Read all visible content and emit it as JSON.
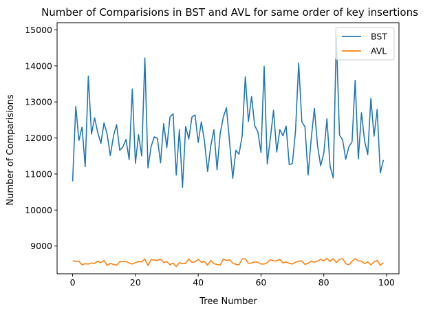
{
  "chart_data": {
    "type": "line",
    "title": "Number of Comparisions in BST and AVL for same order of key insertions",
    "xlabel": "Tree Number",
    "ylabel": "Number of Comparisions",
    "xlim": [
      -4.95,
      103.95
    ],
    "ylim": [
      8230,
      15200
    ],
    "xticks": [
      0,
      20,
      40,
      60,
      80,
      100
    ],
    "yticks": [
      9000,
      10000,
      11000,
      12000,
      13000,
      14000,
      15000
    ],
    "grid": false,
    "legend_position": "upper right",
    "x": [
      0,
      1,
      2,
      3,
      4,
      5,
      6,
      7,
      8,
      9,
      10,
      11,
      12,
      13,
      14,
      15,
      16,
      17,
      18,
      19,
      20,
      21,
      22,
      23,
      24,
      25,
      26,
      27,
      28,
      29,
      30,
      31,
      32,
      33,
      34,
      35,
      36,
      37,
      38,
      39,
      40,
      41,
      42,
      43,
      44,
      45,
      46,
      47,
      48,
      49,
      50,
      51,
      52,
      53,
      54,
      55,
      56,
      57,
      58,
      59,
      60,
      61,
      62,
      63,
      64,
      65,
      66,
      67,
      68,
      69,
      70,
      71,
      72,
      73,
      74,
      75,
      76,
      77,
      78,
      79,
      80,
      81,
      82,
      83,
      84,
      85,
      86,
      87,
      88,
      89,
      90,
      91,
      92,
      93,
      94,
      95,
      96,
      97,
      98,
      99
    ],
    "series": [
      {
        "name": "BST",
        "color": "#1f77b4",
        "values": [
          10800,
          12880,
          11930,
          12300,
          11200,
          13720,
          12110,
          12560,
          12150,
          11850,
          12420,
          12100,
          11510,
          12050,
          12370,
          11660,
          11750,
          11960,
          11400,
          13360,
          11300,
          12090,
          11500,
          14220,
          11170,
          11760,
          12030,
          11990,
          11310,
          12400,
          11730,
          12580,
          12670,
          10970,
          12230,
          10630,
          12320,
          11970,
          12580,
          12640,
          11880,
          12450,
          11900,
          11070,
          11780,
          12230,
          11120,
          12120,
          12580,
          12840,
          11880,
          10880,
          11660,
          11550,
          12060,
          13700,
          12460,
          13150,
          12340,
          12170,
          11600,
          13990,
          11280,
          12010,
          12770,
          11610,
          12230,
          12060,
          12330,
          11260,
          11290,
          12200,
          14080,
          12450,
          12310,
          10970,
          11980,
          12820,
          11800,
          11230,
          11570,
          12530,
          11220,
          10890,
          14800,
          12080,
          11950,
          11410,
          11760,
          11890,
          13600,
          11420,
          12700,
          11920,
          11540,
          13100,
          12050,
          12790,
          11030,
          11390
        ]
      },
      {
        "name": "AVL",
        "color": "#ff7f0e",
        "values": [
          8590,
          8580,
          8580,
          8480,
          8510,
          8500,
          8530,
          8520,
          8580,
          8540,
          8600,
          8460,
          8520,
          8490,
          8470,
          8560,
          8570,
          8570,
          8530,
          8500,
          8540,
          8570,
          8560,
          8640,
          8460,
          8620,
          8610,
          8600,
          8640,
          8540,
          8570,
          8480,
          8530,
          8430,
          8540,
          8510,
          8520,
          8640,
          8550,
          8560,
          8630,
          8550,
          8570,
          8470,
          8600,
          8510,
          8490,
          8470,
          8640,
          8600,
          8620,
          8530,
          8490,
          8480,
          8640,
          8650,
          8520,
          8530,
          8560,
          8550,
          8500,
          8500,
          8540,
          8620,
          8590,
          8590,
          8630,
          8530,
          8560,
          8520,
          8500,
          8550,
          8580,
          8590,
          8490,
          8520,
          8580,
          8550,
          8580,
          8630,
          8590,
          8660,
          8570,
          8650,
          8540,
          8630,
          8650,
          8510,
          8480,
          8580,
          8650,
          8590,
          8580,
          8510,
          8560,
          8480,
          8560,
          8600,
          8470,
          8540
        ]
      }
    ]
  }
}
